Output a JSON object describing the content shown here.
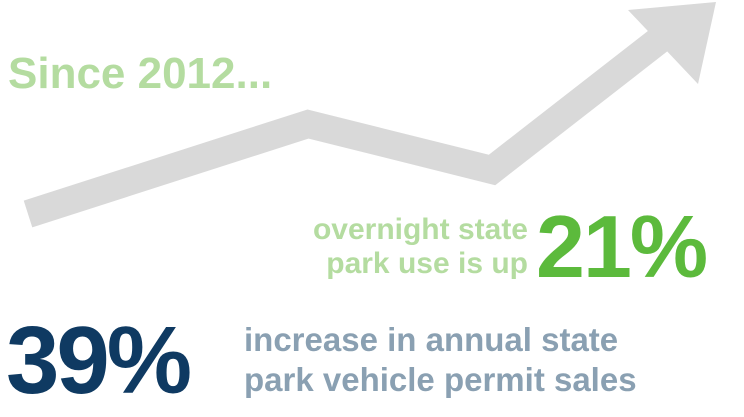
{
  "headline": "Since 2012...",
  "stat_overnight": {
    "line1": "overnight state",
    "line2": "park use is up",
    "value": "21%"
  },
  "stat_permits": {
    "value": "39%",
    "line1": "increase in annual state",
    "line2": "park vehicle permit sales"
  },
  "colors": {
    "arrow": "#d9d9d9",
    "headline": "#b4dca0",
    "accent_green": "#5cba3c",
    "accent_navy": "#0f3a62",
    "secondary_text": "#8aa0b2"
  },
  "icons": {
    "trend": "up-trend-arrow-icon"
  }
}
